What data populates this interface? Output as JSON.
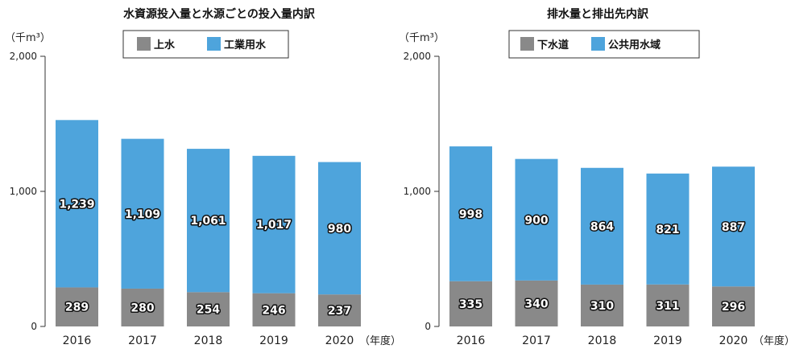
{
  "chart_data": [
    {
      "type": "bar",
      "stacked": true,
      "title": "水資源投入量と水源ごとの投入量内訳",
      "unit_label": "（千m³）",
      "year_suffix": "（年度）",
      "categories": [
        "2016",
        "2017",
        "2018",
        "2019",
        "2020"
      ],
      "ylim": [
        0,
        2000
      ],
      "yticks": [
        {
          "value": 0,
          "label": "0"
        },
        {
          "value": 1000,
          "label": "1,000"
        },
        {
          "value": 2000,
          "label": "2,000"
        }
      ],
      "legend_position": "top-center",
      "grid": false,
      "series": [
        {
          "name": "上水",
          "color": "#898989",
          "values": [
            289,
            280,
            254,
            246,
            237
          ],
          "labels": [
            "289",
            "280",
            "254",
            "246",
            "237"
          ]
        },
        {
          "name": "工業用水",
          "color": "#4ea4dc",
          "values": [
            1239,
            1109,
            1061,
            1017,
            980
          ],
          "labels": [
            "1,239",
            "1,109",
            "1,061",
            "1,017",
            "980"
          ]
        }
      ]
    },
    {
      "type": "bar",
      "stacked": true,
      "title": "排水量と排出先内訳",
      "unit_label": "（千m³）",
      "year_suffix": "（年度）",
      "categories": [
        "2016",
        "2017",
        "2018",
        "2019",
        "2020"
      ],
      "ylim": [
        0,
        2000
      ],
      "yticks": [
        {
          "value": 0,
          "label": "0"
        },
        {
          "value": 1000,
          "label": "1,000"
        },
        {
          "value": 2000,
          "label": "2,000"
        }
      ],
      "legend_position": "top-center",
      "grid": false,
      "series": [
        {
          "name": "下水道",
          "color": "#898989",
          "values": [
            335,
            340,
            310,
            311,
            296
          ],
          "labels": [
            "335",
            "340",
            "310",
            "311",
            "296"
          ]
        },
        {
          "name": "公共用水域",
          "color": "#4ea4dc",
          "values": [
            998,
            900,
            864,
            821,
            887
          ],
          "labels": [
            "998",
            "900",
            "864",
            "821",
            "887"
          ]
        }
      ]
    }
  ]
}
